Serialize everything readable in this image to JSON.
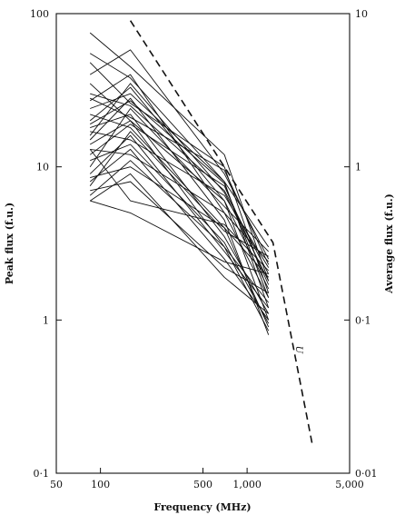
{
  "chart_data": {
    "type": "line",
    "xlabel": "Frequency (MHz)",
    "ylabel": "Peak flux (f.u.)",
    "y2label": "Average flux (f.u.)",
    "xscale": "log",
    "yscale": "log",
    "xlim": [
      50,
      5000
    ],
    "ylim": [
      0.1,
      100
    ],
    "y2lim": [
      0.01,
      10
    ],
    "xticks": [
      {
        "value": 50,
        "label": "50"
      },
      {
        "value": 100,
        "label": "100"
      },
      {
        "value": 500,
        "label": "500"
      },
      {
        "value": 1000,
        "label": "1,000"
      },
      {
        "value": 5000,
        "label": "5,000"
      }
    ],
    "yticks": [
      {
        "value": 0.1,
        "label": "0·1"
      },
      {
        "value": 1,
        "label": "1"
      },
      {
        "value": 10,
        "label": "10"
      },
      {
        "value": 100,
        "label": "100"
      }
    ],
    "y2ticks": [
      {
        "value": 0.01,
        "label": "0·01"
      },
      {
        "value": 0.1,
        "label": "0·1"
      },
      {
        "value": 1,
        "label": "1"
      },
      {
        "value": 10,
        "label": "10"
      }
    ],
    "x": [
      85,
      160,
      700,
      1400
    ],
    "series": [
      {
        "values": [
          75,
          45,
          12,
          1.8
        ]
      },
      {
        "values": [
          55,
          38,
          8,
          1.2
        ]
      },
      {
        "values": [
          48,
          26,
          10,
          1.5
        ]
      },
      {
        "values": [
          40,
          58,
          9,
          2.5
        ]
      },
      {
        "values": [
          35,
          20,
          6,
          1.0
        ]
      },
      {
        "values": [
          30,
          25,
          7,
          2.0
        ]
      },
      {
        "values": [
          27,
          40,
          5,
          1.4
        ]
      },
      {
        "values": [
          24,
          30,
          8,
          3.0
        ]
      },
      {
        "values": [
          22,
          18,
          4,
          0.9
        ]
      },
      {
        "values": [
          20,
          33,
          6,
          1.6
        ]
      },
      {
        "values": [
          18,
          22,
          3.5,
          1.1
        ]
      },
      {
        "values": [
          17,
          15,
          6.5,
          2.2
        ]
      },
      {
        "values": [
          15,
          28,
          4.5,
          0.8
        ]
      },
      {
        "values": [
          14,
          20,
          3,
          1.3
        ]
      },
      {
        "values": [
          13,
          12,
          5,
          2.4
        ]
      },
      {
        "values": [
          12,
          19,
          7.5,
          1.7
        ]
      },
      {
        "values": [
          11,
          14,
          3.2,
          0.95
        ]
      },
      {
        "values": [
          10,
          24,
          5.5,
          2.8
        ]
      },
      {
        "values": [
          9,
          16,
          2.8,
          1.2
        ]
      },
      {
        "values": [
          8.5,
          10,
          4,
          1.9
        ]
      },
      {
        "values": [
          8,
          13,
          2.5,
          1.0
        ]
      },
      {
        "values": [
          7.5,
          17,
          3.8,
          2.6
        ]
      },
      {
        "values": [
          7,
          8,
          2.2,
          1.5
        ]
      },
      {
        "values": [
          6.5,
          11,
          3,
          0.85
        ]
      },
      {
        "values": [
          6,
          5,
          2.4,
          2.0
        ]
      },
      {
        "values": [
          6,
          9,
          1.9,
          1.1
        ]
      },
      {
        "values": [
          28,
          21,
          9.5,
          2.3
        ]
      },
      {
        "values": [
          16,
          35,
          6.8,
          1.8
        ]
      },
      {
        "values": [
          19,
          27,
          7.8,
          1.4
        ]
      },
      {
        "values": [
          13,
          6,
          4.2,
          2.1
        ]
      }
    ],
    "envelope": {
      "style": "dashed",
      "x": [
        160,
        700,
        1500,
        2800
      ],
      "values": [
        90,
        10,
        3.2,
        0.15
      ]
    },
    "annotation": "U"
  }
}
